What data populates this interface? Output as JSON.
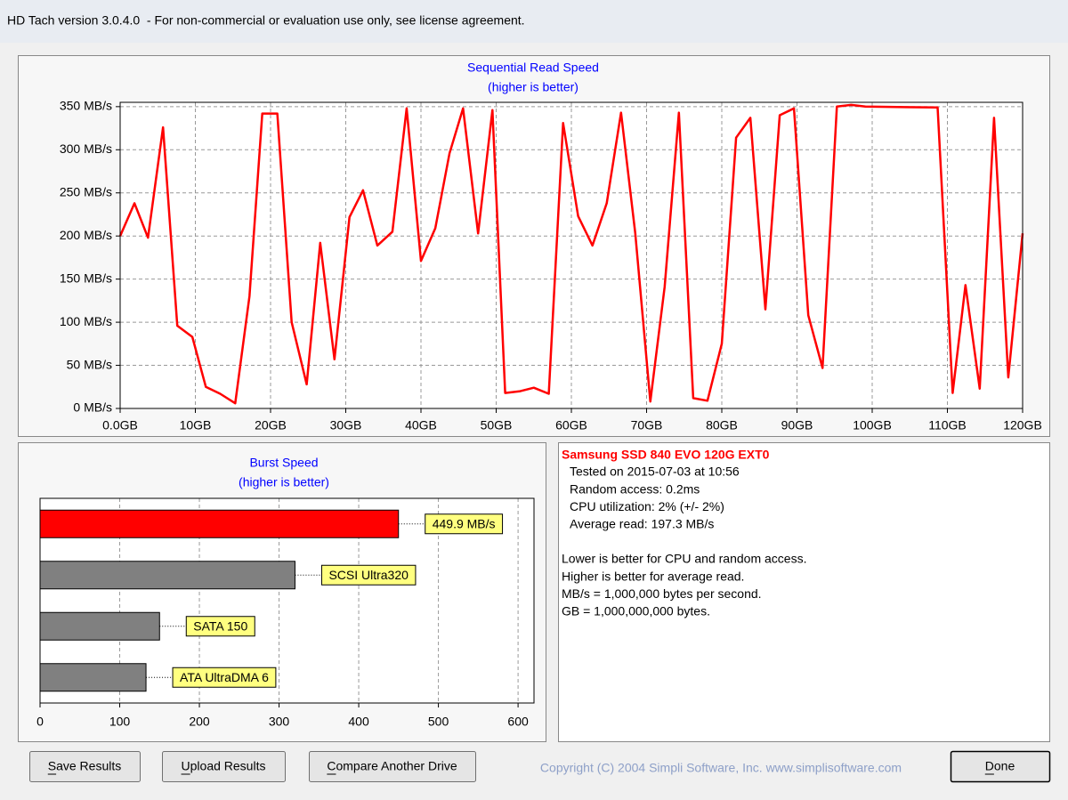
{
  "window": {
    "title": "HD Tach version 3.0.4.0  - For non-commercial or evaluation use only, see license agreement."
  },
  "chart_data": [
    {
      "type": "line",
      "title": "Sequential Read Speed",
      "subtitle": "(higher is better)",
      "color": "#ff0000",
      "grid": true,
      "x": [
        0,
        1.9,
        3.7,
        5.7,
        7.6,
        9.6,
        11.4,
        13.3,
        15.3,
        17.2,
        18.9,
        20.9,
        22.8,
        24.8,
        26.6,
        28.5,
        30.5,
        32.3,
        34.2,
        36.2,
        38.1,
        40.0,
        41.9,
        43.8,
        45.6,
        47.6,
        49.5,
        51.2,
        53.2,
        55.0,
        57.0,
        58.9,
        60.9,
        62.8,
        64.7,
        66.6,
        68.5,
        70.5,
        72.4,
        74.3,
        76.2,
        78.1,
        80.0,
        81.9,
        83.8,
        85.8,
        87.7,
        89.6,
        91.5,
        93.4,
        95.3,
        97.2,
        99.1,
        108.7,
        110.7,
        112.4,
        114.3,
        116.2,
        118.1,
        120
      ],
      "values": [
        200,
        238,
        198,
        326,
        96,
        83,
        25,
        17,
        6,
        130,
        342,
        342,
        100,
        28,
        192,
        57,
        222,
        253,
        189,
        205,
        348,
        171,
        209,
        296,
        348,
        203,
        346,
        18,
        20,
        24,
        17,
        331,
        223,
        189,
        238,
        343,
        203,
        8,
        141,
        343,
        12,
        9,
        75,
        314,
        337,
        115,
        340,
        348,
        108,
        47,
        350,
        352,
        350,
        349,
        18,
        143,
        23,
        337,
        36,
        203
      ],
      "xlim": [
        0,
        120
      ],
      "xticks": [
        {
          "value": 0,
          "label": "0.0GB"
        },
        {
          "value": 10,
          "label": "10GB"
        },
        {
          "value": 20,
          "label": "20GB"
        },
        {
          "value": 30,
          "label": "30GB"
        },
        {
          "value": 40,
          "label": "40GB"
        },
        {
          "value": 50,
          "label": "50GB"
        },
        {
          "value": 60,
          "label": "60GB"
        },
        {
          "value": 70,
          "label": "70GB"
        },
        {
          "value": 80,
          "label": "80GB"
        },
        {
          "value": 90,
          "label": "90GB"
        },
        {
          "value": 100,
          "label": "100GB"
        },
        {
          "value": 110,
          "label": "110GB"
        },
        {
          "value": 120,
          "label": "120GB"
        }
      ],
      "ylim": [
        0,
        355
      ],
      "yticks": [
        {
          "value": 0,
          "label": "0 MB/s"
        },
        {
          "value": 50,
          "label": "50 MB/s"
        },
        {
          "value": 100,
          "label": "100 MB/s"
        },
        {
          "value": 150,
          "label": "150 MB/s"
        },
        {
          "value": 200,
          "label": "200 MB/s"
        },
        {
          "value": 250,
          "label": "250 MB/s"
        },
        {
          "value": 300,
          "label": "300 MB/s"
        },
        {
          "value": 350,
          "label": "350 MB/s"
        }
      ]
    },
    {
      "type": "hbar",
      "title": "Burst Speed",
      "subtitle": "(higher is better)",
      "grid": true,
      "categories": [
        null,
        "SCSI Ultra320",
        "SATA 150",
        "ATA UltraDMA 6"
      ],
      "values": [
        449.9,
        320,
        150,
        133
      ],
      "value_labels": [
        "449.9 MB/s",
        null,
        null,
        null
      ],
      "colors": [
        "#ff0000",
        "#808080",
        "#808080",
        "#808080"
      ],
      "xlim": [
        0,
        620
      ],
      "xticks": [
        0,
        100,
        200,
        300,
        400,
        500,
        600
      ]
    }
  ],
  "info": {
    "drive": "Samsung SSD 840 EVO 120G EXT0",
    "details": [
      "Tested on 2015-07-03 at 10:56",
      "Random access: 0.2ms",
      "CPU utilization: 2% (+/- 2%)",
      "Average read: 197.3 MB/s"
    ],
    "notes": [
      "Lower is better for CPU and random access.",
      "Higher is better for average read.",
      "MB/s = 1,000,000 bytes per second.",
      "GB = 1,000,000,000 bytes."
    ]
  },
  "buttons": [
    "Save Results",
    "Upload Results",
    "Compare Another Drive",
    "Done"
  ],
  "copyright": "Copyright (C) 2004 Simpli Software, Inc. www.simplisoftware.com"
}
